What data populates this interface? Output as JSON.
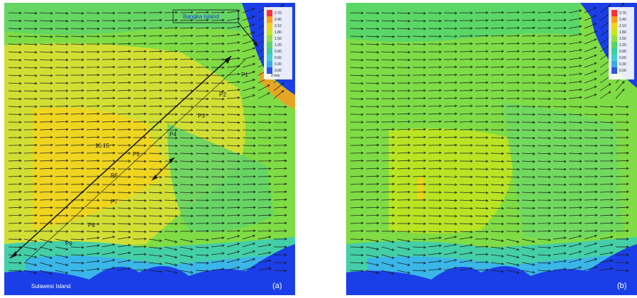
{
  "panels": [
    {
      "tag": "(a)"
    },
    {
      "tag": "(b)"
    }
  ],
  "labels": {
    "bangka": "Bangka Island",
    "sulawesi": "Sulawesi Island",
    "scale": "2 m/s",
    "points": [
      "P1",
      "P2",
      "P3",
      "P4",
      "P5",
      "P6",
      "P7",
      "P8",
      "P9"
    ],
    "section": "10.15"
  },
  "legend": {
    "values": [
      "2.70",
      "2.40",
      "2.10",
      "1.80",
      "1.50",
      "1.20",
      "0.90",
      "0.60",
      "0.30",
      "0.00"
    ],
    "colors": [
      "#ff3030",
      "#ff9a1a",
      "#f2d21a",
      "#c8e61c",
      "#8fe040",
      "#56d66a",
      "#3ad09a",
      "#40d0d2",
      "#3aa8ee",
      "#2a55e8"
    ]
  }
}
